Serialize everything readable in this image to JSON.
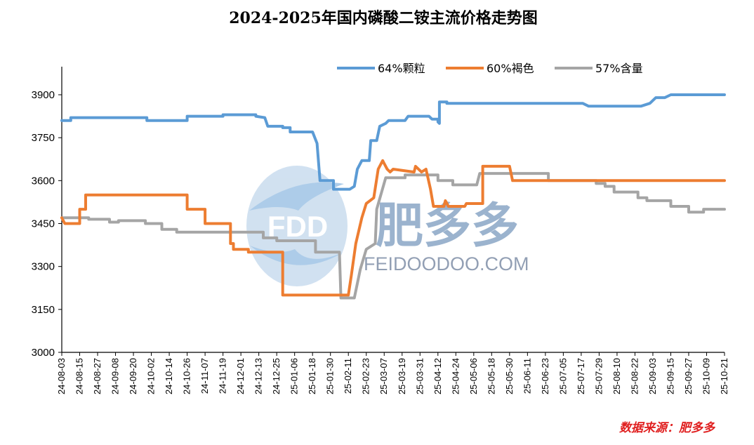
{
  "chart_data": {
    "type": "line",
    "title": "2024-2025年国内磷酸二铵主流价格走势图",
    "ylim": [
      3000,
      3900
    ],
    "yticks": [
      3000,
      3150,
      3300,
      3450,
      3600,
      3750,
      3900
    ],
    "xlabels": [
      "24-08-03",
      "24-08-15",
      "24-08-27",
      "24-09-08",
      "24-09-20",
      "24-10-02",
      "24-10-14",
      "24-10-26",
      "24-11-07",
      "24-11-19",
      "24-12-01",
      "24-12-13",
      "24-12-25",
      "25-01-06",
      "25-01-18",
      "25-01-30",
      "25-02-11",
      "25-02-23",
      "25-03-07",
      "25-03-19",
      "25-03-31",
      "25-04-12",
      "25-04-24",
      "25-05-06",
      "25-05-18",
      "25-05-30",
      "25-06-11",
      "25-06-23",
      "25-07-05",
      "25-07-17",
      "25-07-29",
      "25-08-10",
      "25-08-22",
      "25-09-03",
      "25-09-15",
      "25-09-27",
      "25-10-09",
      "25-10-21"
    ],
    "x_start": "24-08-03",
    "x_end": "25-10-21",
    "legend_position": "top-right",
    "grid": false,
    "series": [
      {
        "name": "64%颗粒",
        "color": "#5b9bd5",
        "points": [
          [
            "24-08-03",
            3810
          ],
          [
            "24-08-09",
            3810
          ],
          [
            "24-08-09",
            3820
          ],
          [
            "24-09-29",
            3820
          ],
          [
            "24-09-29",
            3810
          ],
          [
            "24-10-26",
            3810
          ],
          [
            "24-10-26",
            3825
          ],
          [
            "24-11-19",
            3825
          ],
          [
            "24-11-19",
            3830
          ],
          [
            "24-12-11",
            3830
          ],
          [
            "24-12-11",
            3825
          ],
          [
            "24-12-17",
            3820
          ],
          [
            "24-12-19",
            3790
          ],
          [
            "24-12-29",
            3790
          ],
          [
            "24-12-29",
            3785
          ],
          [
            "25-01-03",
            3785
          ],
          [
            "25-01-03",
            3770
          ],
          [
            "25-01-18",
            3770
          ],
          [
            "25-01-21",
            3730
          ],
          [
            "25-01-23",
            3600
          ],
          [
            "25-01-29",
            3600
          ],
          [
            "25-02-01",
            3600
          ],
          [
            "25-02-01",
            3570
          ],
          [
            "25-02-12",
            3570
          ],
          [
            "25-02-15",
            3580
          ],
          [
            "25-02-17",
            3640
          ],
          [
            "25-02-20",
            3670
          ],
          [
            "25-02-25",
            3670
          ],
          [
            "25-02-26",
            3740
          ],
          [
            "25-03-02",
            3740
          ],
          [
            "25-03-04",
            3790
          ],
          [
            "25-03-08",
            3800
          ],
          [
            "25-03-10",
            3810
          ],
          [
            "25-03-21",
            3810
          ],
          [
            "25-03-23",
            3825
          ],
          [
            "25-04-06",
            3825
          ],
          [
            "25-04-08",
            3815
          ],
          [
            "25-04-12",
            3815
          ],
          [
            "25-04-12",
            3805
          ],
          [
            "25-04-13",
            3800
          ],
          [
            "25-04-13",
            3875
          ],
          [
            "25-04-18",
            3875
          ],
          [
            "25-04-18",
            3870
          ],
          [
            "25-07-18",
            3870
          ],
          [
            "25-07-22",
            3860
          ],
          [
            "25-08-26",
            3860
          ],
          [
            "25-09-01",
            3870
          ],
          [
            "25-09-05",
            3890
          ],
          [
            "25-09-11",
            3890
          ],
          [
            "25-09-15",
            3900
          ],
          [
            "25-10-21",
            3900
          ]
        ]
      },
      {
        "name": "60%褐色",
        "color": "#ed7d31",
        "points": [
          [
            "24-08-03",
            3470
          ],
          [
            "24-08-05",
            3450
          ],
          [
            "24-08-15",
            3450
          ],
          [
            "24-08-15",
            3500
          ],
          [
            "24-08-19",
            3500
          ],
          [
            "24-08-19",
            3550
          ],
          [
            "24-10-26",
            3550
          ],
          [
            "24-10-26",
            3500
          ],
          [
            "24-11-07",
            3500
          ],
          [
            "24-11-07",
            3450
          ],
          [
            "24-11-24",
            3450
          ],
          [
            "24-11-24",
            3380
          ],
          [
            "24-11-26",
            3380
          ],
          [
            "24-11-26",
            3360
          ],
          [
            "24-12-06",
            3360
          ],
          [
            "24-12-06",
            3350
          ],
          [
            "24-12-29",
            3350
          ],
          [
            "24-12-29",
            3200
          ],
          [
            "25-02-11",
            3200
          ],
          [
            "25-02-13",
            3270
          ],
          [
            "25-02-16",
            3380
          ],
          [
            "25-02-20",
            3470
          ],
          [
            "25-02-23",
            3520
          ],
          [
            "25-02-28",
            3540
          ],
          [
            "25-03-03",
            3640
          ],
          [
            "25-03-06",
            3670
          ],
          [
            "25-03-07",
            3660
          ],
          [
            "25-03-09",
            3640
          ],
          [
            "25-03-11",
            3630
          ],
          [
            "25-03-13",
            3640
          ],
          [
            "25-03-27",
            3630
          ],
          [
            "25-03-28",
            3650
          ],
          [
            "25-04-01",
            3630
          ],
          [
            "25-04-04",
            3640
          ],
          [
            "25-04-07",
            3570
          ],
          [
            "25-04-09",
            3510
          ],
          [
            "25-04-16",
            3510
          ],
          [
            "25-04-17",
            3530
          ],
          [
            "25-04-19",
            3510
          ],
          [
            "25-04-30",
            3510
          ],
          [
            "25-05-01",
            3520
          ],
          [
            "25-05-12",
            3520
          ],
          [
            "25-05-12",
            3650
          ],
          [
            "25-05-30",
            3650
          ],
          [
            "25-06-01",
            3600
          ],
          [
            "25-10-21",
            3600
          ]
        ]
      },
      {
        "name": "57%含量",
        "color": "#a5a5a5",
        "points": [
          [
            "24-08-03",
            3470
          ],
          [
            "24-08-21",
            3470
          ],
          [
            "24-08-21",
            3465
          ],
          [
            "24-09-04",
            3465
          ],
          [
            "24-09-04",
            3455
          ],
          [
            "24-09-10",
            3455
          ],
          [
            "24-09-10",
            3460
          ],
          [
            "24-09-28",
            3460
          ],
          [
            "24-09-28",
            3450
          ],
          [
            "24-10-09",
            3450
          ],
          [
            "24-10-09",
            3430
          ],
          [
            "24-10-19",
            3430
          ],
          [
            "24-10-19",
            3420
          ],
          [
            "24-12-16",
            3420
          ],
          [
            "24-12-16",
            3400
          ],
          [
            "24-12-25",
            3400
          ],
          [
            "24-12-25",
            3390
          ],
          [
            "25-01-20",
            3390
          ],
          [
            "25-01-20",
            3350
          ],
          [
            "25-02-05",
            3350
          ],
          [
            "25-02-06",
            3190
          ],
          [
            "25-02-11",
            3190
          ],
          [
            "25-02-15",
            3190
          ],
          [
            "25-02-19",
            3290
          ],
          [
            "25-02-23",
            3360
          ],
          [
            "25-03-01",
            3380
          ],
          [
            "25-03-02",
            3500
          ],
          [
            "25-03-08",
            3610
          ],
          [
            "25-03-21",
            3610
          ],
          [
            "25-03-21",
            3620
          ],
          [
            "25-04-12",
            3620
          ],
          [
            "25-04-12",
            3600
          ],
          [
            "25-04-22",
            3600
          ],
          [
            "25-04-22",
            3585
          ],
          [
            "25-05-08",
            3585
          ],
          [
            "25-05-10",
            3625
          ],
          [
            "25-06-25",
            3625
          ],
          [
            "25-06-25",
            3600
          ],
          [
            "25-07-27",
            3600
          ],
          [
            "25-07-27",
            3590
          ],
          [
            "25-08-02",
            3590
          ],
          [
            "25-08-02",
            3580
          ],
          [
            "25-08-08",
            3580
          ],
          [
            "25-08-08",
            3560
          ],
          [
            "25-08-24",
            3560
          ],
          [
            "25-08-24",
            3540
          ],
          [
            "25-08-30",
            3540
          ],
          [
            "25-08-30",
            3530
          ],
          [
            "25-09-15",
            3530
          ],
          [
            "25-09-15",
            3510
          ],
          [
            "25-09-27",
            3510
          ],
          [
            "25-09-27",
            3490
          ],
          [
            "25-10-07",
            3490
          ],
          [
            "25-10-07",
            3500
          ],
          [
            "25-10-21",
            3500
          ]
        ]
      }
    ]
  },
  "watermark": {
    "logo": "FDD",
    "brand": "肥多多",
    "url": "FEIDOODOO.COM"
  },
  "source": "数据来源：肥多多"
}
